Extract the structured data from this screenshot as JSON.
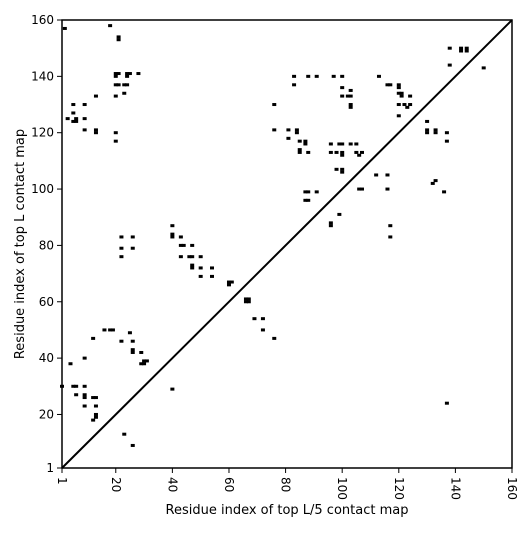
{
  "chart_data": {
    "type": "scatter",
    "title": "",
    "xlabel": "Residue index of top L/5 contact map",
    "ylabel": "Residue index of top L contact map",
    "xlim": [
      1,
      160
    ],
    "ylim": [
      1,
      160
    ],
    "xticks": [
      "1",
      "20",
      "40",
      "60",
      "80",
      "100",
      "120",
      "140",
      "160"
    ],
    "yticks": [
      "1",
      "20",
      "40",
      "60",
      "80",
      "100",
      "120",
      "140",
      "160"
    ],
    "grid": false,
    "legend": "none",
    "diagonal": {
      "from": [
        1,
        1
      ],
      "to": [
        160,
        160
      ]
    },
    "colors": {
      "points": "#000000",
      "axis": "#000000",
      "background": "#ffffff"
    },
    "series": [
      {
        "values": [
          [
            2,
            157
          ],
          [
            18,
            158
          ],
          [
            21,
            154
          ],
          [
            21,
            153
          ],
          [
            20,
            141
          ],
          [
            21,
            141
          ],
          [
            24,
            141
          ],
          [
            25,
            141
          ],
          [
            28,
            141
          ],
          [
            20,
            140
          ],
          [
            24,
            140
          ],
          [
            20,
            137
          ],
          [
            21,
            137
          ],
          [
            23,
            137
          ],
          [
            24,
            137
          ],
          [
            20,
            133
          ],
          [
            23,
            134
          ],
          [
            13,
            133
          ],
          [
            5,
            130
          ],
          [
            5,
            127
          ],
          [
            3,
            125
          ],
          [
            5,
            124
          ],
          [
            6,
            124
          ],
          [
            6,
            125
          ],
          [
            9,
            130
          ],
          [
            9,
            125
          ],
          [
            9,
            121
          ],
          [
            13,
            121
          ],
          [
            13,
            120
          ],
          [
            20,
            120
          ],
          [
            20,
            117
          ],
          [
            76,
            130
          ],
          [
            76,
            121
          ],
          [
            81,
            121
          ],
          [
            81,
            118
          ],
          [
            84,
            121
          ],
          [
            84,
            120
          ],
          [
            83,
            137
          ],
          [
            83,
            140
          ],
          [
            88,
            140
          ],
          [
            91,
            140
          ],
          [
            97,
            140
          ],
          [
            100,
            140
          ],
          [
            100,
            136
          ],
          [
            100,
            133
          ],
          [
            103,
            135
          ],
          [
            102,
            133
          ],
          [
            103,
            133
          ],
          [
            103,
            130
          ],
          [
            103,
            129
          ],
          [
            85,
            117
          ],
          [
            87,
            117
          ],
          [
            87,
            116
          ],
          [
            85,
            114
          ],
          [
            85,
            113
          ],
          [
            88,
            113
          ],
          [
            96,
            116
          ],
          [
            99,
            116
          ],
          [
            100,
            116
          ],
          [
            103,
            116
          ],
          [
            105,
            116
          ],
          [
            96,
            113
          ],
          [
            98,
            113
          ],
          [
            100,
            113
          ],
          [
            100,
            112
          ],
          [
            105,
            113
          ],
          [
            106,
            112
          ],
          [
            107,
            113
          ],
          [
            98,
            107
          ],
          [
            100,
            107
          ],
          [
            100,
            106
          ],
          [
            106,
            100
          ],
          [
            107,
            100
          ],
          [
            112,
            105
          ],
          [
            116,
            105
          ],
          [
            116,
            100
          ],
          [
            88,
            99
          ],
          [
            87,
            99
          ],
          [
            91,
            99
          ],
          [
            87,
            96
          ],
          [
            88,
            96
          ],
          [
            99,
            91
          ],
          [
            96,
            88
          ],
          [
            96,
            87
          ],
          [
            117,
            87
          ],
          [
            117,
            83
          ],
          [
            113,
            140
          ],
          [
            116,
            137
          ],
          [
            117,
            137
          ],
          [
            120,
            137
          ],
          [
            120,
            136
          ],
          [
            120,
            134
          ],
          [
            121,
            134
          ],
          [
            121,
            133
          ],
          [
            124,
            133
          ],
          [
            120,
            130
          ],
          [
            122,
            130
          ],
          [
            124,
            130
          ],
          [
            123,
            129
          ],
          [
            120,
            126
          ],
          [
            130,
            124
          ],
          [
            130,
            121
          ],
          [
            130,
            120
          ],
          [
            133,
            121
          ],
          [
            133,
            120
          ],
          [
            137,
            120
          ],
          [
            137,
            117
          ],
          [
            138,
            150
          ],
          [
            142,
            150
          ],
          [
            142,
            149
          ],
          [
            144,
            150
          ],
          [
            144,
            149
          ],
          [
            138,
            144
          ],
          [
            150,
            143
          ],
          [
            133,
            103
          ],
          [
            132,
            102
          ],
          [
            136,
            99
          ],
          [
            137,
            24
          ],
          [
            40,
            87
          ],
          [
            40,
            84
          ],
          [
            40,
            83
          ],
          [
            43,
            83
          ],
          [
            43,
            80
          ],
          [
            44,
            80
          ],
          [
            47,
            80
          ],
          [
            43,
            76
          ],
          [
            46,
            76
          ],
          [
            47,
            76
          ],
          [
            50,
            76
          ],
          [
            47,
            73
          ],
          [
            47,
            72
          ],
          [
            50,
            72
          ],
          [
            54,
            72
          ],
          [
            50,
            69
          ],
          [
            54,
            69
          ],
          [
            60,
            67
          ],
          [
            60,
            66
          ],
          [
            61,
            67
          ],
          [
            66,
            61
          ],
          [
            67,
            61
          ],
          [
            66,
            60
          ],
          [
            67,
            60
          ],
          [
            69,
            54
          ],
          [
            72,
            54
          ],
          [
            72,
            50
          ],
          [
            76,
            47
          ],
          [
            22,
            83
          ],
          [
            22,
            79
          ],
          [
            26,
            83
          ],
          [
            26,
            79
          ],
          [
            22,
            76
          ],
          [
            16,
            50
          ],
          [
            18,
            50
          ],
          [
            19,
            50
          ],
          [
            25,
            49
          ],
          [
            26,
            46
          ],
          [
            22,
            46
          ],
          [
            12,
            47
          ],
          [
            26,
            43
          ],
          [
            26,
            42
          ],
          [
            29,
            42
          ],
          [
            30,
            39
          ],
          [
            31,
            39
          ],
          [
            29,
            38
          ],
          [
            30,
            38
          ],
          [
            40,
            29
          ],
          [
            4,
            38
          ],
          [
            9,
            40
          ],
          [
            1,
            30
          ],
          [
            5,
            30
          ],
          [
            6,
            30
          ],
          [
            9,
            30
          ],
          [
            6,
            27
          ],
          [
            9,
            27
          ],
          [
            9,
            26
          ],
          [
            12,
            26
          ],
          [
            13,
            26
          ],
          [
            9,
            23
          ],
          [
            13,
            23
          ],
          [
            13,
            20
          ],
          [
            13,
            19
          ],
          [
            12,
            18
          ],
          [
            23,
            13
          ],
          [
            26,
            9
          ]
        ]
      }
    ]
  }
}
